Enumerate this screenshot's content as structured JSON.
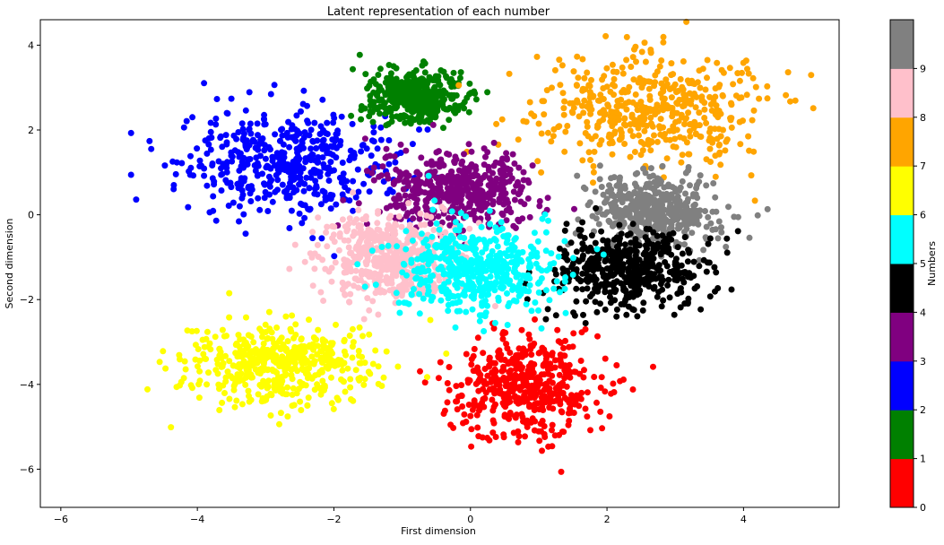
{
  "chart_data": {
    "type": "scatter",
    "title": "Latent representation of each number",
    "xlabel": "First dimension",
    "ylabel": "Second dimension",
    "xlim": [
      -6.3,
      5.4
    ],
    "ylim": [
      -6.9,
      4.6
    ],
    "xticks": [
      -6,
      -4,
      -2,
      0,
      2,
      4
    ],
    "yticks": [
      -6,
      -4,
      -2,
      0,
      2,
      4
    ],
    "xtick_labels": [
      "−6",
      "−4",
      "−2",
      "0",
      "2",
      "4"
    ],
    "ytick_labels": [
      "−6",
      "−4",
      "−2",
      "0",
      "2",
      "4"
    ],
    "grid": false,
    "colorbar": {
      "label": "Numbers",
      "range": [
        0,
        10
      ],
      "ticks": [
        "0",
        "1",
        "2",
        "3",
        "4",
        "5",
        "6",
        "7",
        "8",
        "9"
      ],
      "colors": [
        "#ff0000",
        "#008000",
        "#0000ff",
        "#800080",
        "#000000",
        "#00ffff",
        "#ffff00",
        "#ffa500",
        "#ffc0cb",
        "#808080"
      ]
    },
    "clusters": [
      {
        "label": "0",
        "color": "#ff0000",
        "center": [
          0.8,
          -4.0
        ],
        "spread": [
          0.55,
          0.6
        ]
      },
      {
        "label": "1",
        "color": "#008000",
        "center": [
          -0.8,
          2.8
        ],
        "spread": [
          0.35,
          0.3
        ]
      },
      {
        "label": "2",
        "color": "#0000ff",
        "center": [
          -2.7,
          1.2
        ],
        "spread": [
          0.75,
          0.6
        ]
      },
      {
        "label": "3",
        "color": "#800080",
        "center": [
          -0.2,
          0.6
        ],
        "spread": [
          0.55,
          0.45
        ]
      },
      {
        "label": "4",
        "color": "#000000",
        "center": [
          2.3,
          -1.3
        ],
        "spread": [
          0.55,
          0.45
        ]
      },
      {
        "label": "5",
        "color": "#00ffff",
        "center": [
          0.1,
          -1.3
        ],
        "spread": [
          0.6,
          0.55
        ]
      },
      {
        "label": "6",
        "color": "#ffff00",
        "center": [
          -2.8,
          -3.5
        ],
        "spread": [
          0.7,
          0.5
        ]
      },
      {
        "label": "7",
        "color": "#ffa500",
        "center": [
          2.6,
          2.5
        ],
        "spread": [
          0.8,
          0.65
        ]
      },
      {
        "label": "8",
        "color": "#ffc0cb",
        "center": [
          -1.2,
          -1.0
        ],
        "spread": [
          0.5,
          0.5
        ]
      },
      {
        "label": "9",
        "color": "#808080",
        "center": [
          2.7,
          0.1
        ],
        "spread": [
          0.45,
          0.45
        ]
      }
    ]
  }
}
